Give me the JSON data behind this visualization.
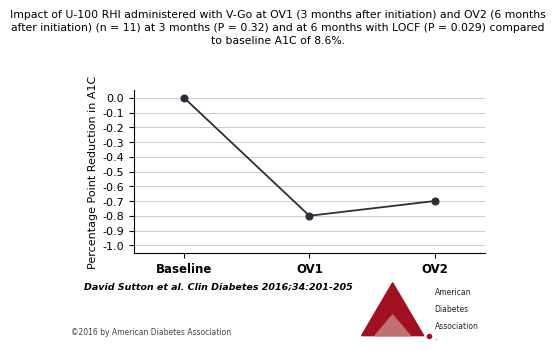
{
  "title_line1": "Impact of U-100 RHI administered with V-Go at OV1 (3 months after initiation) and OV2 (6 months",
  "title_line2": "after initiation) (n = 11) at 3 months (P = 0.32) and at 6 months with LOCF (P = 0.029) compared",
  "title_line3": "to baseline A1C of 8.6%.",
  "x_labels": [
    "Baseline",
    "OV1",
    "OV2"
  ],
  "x_values": [
    0,
    1,
    2
  ],
  "y_values": [
    0.0,
    -0.8,
    -0.7
  ],
  "ylabel": "Percentage Point Reduction in A1C",
  "ylim": [
    -1.05,
    0.05
  ],
  "yticks": [
    0.0,
    -0.1,
    -0.2,
    -0.3,
    -0.4,
    -0.5,
    -0.6,
    -0.7,
    -0.8,
    -0.9,
    -1.0
  ],
  "line_color": "#2e2e3a",
  "marker": "o",
  "marker_size": 5,
  "marker_facecolor": "#2e2e3a",
  "grid_color": "#cccccc",
  "bg_color": "#ffffff",
  "title_fontsize": 7.8,
  "ylabel_fontsize": 8,
  "tick_fontsize": 8,
  "xtick_fontsize": 8.5,
  "citation": "David Sutton et al. Clin Diabetes 2016;34:201-205",
  "copyright": "©2016 by American Diabetes Association",
  "figure_bg": "#ffffff",
  "ada_triangle_color": "#a01020",
  "ada_text_color": "#222222"
}
